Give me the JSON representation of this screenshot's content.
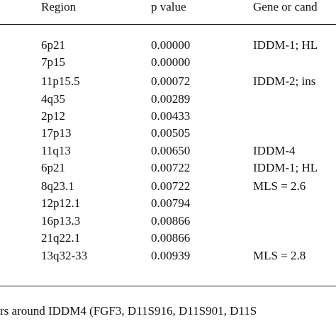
{
  "table": {
    "headers": {
      "region": "Region",
      "p_value": "p value",
      "gene": "Gene or cand"
    },
    "rows": [
      {
        "region": "6p21",
        "p_value": "0.00000",
        "gene": "IDDM-1; HL"
      },
      {
        "region": "7p15",
        "p_value": "0.00000",
        "gene": ""
      },
      {
        "region": "11p15.5",
        "p_value": "0.00072",
        "gene": "IDDM-2; ins"
      },
      {
        "region": "4q35",
        "p_value": "0.00289",
        "gene": ""
      },
      {
        "region": "2p12",
        "p_value": "0.00433",
        "gene": ""
      },
      {
        "region": "17p13",
        "p_value": "0.00505",
        "gene": ""
      },
      {
        "region": "11q13",
        "p_value": "0.00650",
        "gene": "IDDM-4"
      },
      {
        "region": "6p21",
        "p_value": "0.00722",
        "gene": "IDDM-1; HL"
      },
      {
        "region": "8q23.1",
        "p_value": "0.00722",
        "gene": "MLS = 2.6"
      },
      {
        "region": "12p12.1",
        "p_value": "0.00794",
        "gene": ""
      },
      {
        "region": "16p13.3",
        "p_value": "0.00866",
        "gene": ""
      },
      {
        "region": "21q22.1",
        "p_value": "0.00866",
        "gene": ""
      },
      {
        "region": "13q32-33",
        "p_value": "0.00939",
        "gene": "MLS = 2.8"
      }
    ]
  },
  "footnote": "rs around IDDM4 (FGF3, D11S916, D11S901, D11S"
}
